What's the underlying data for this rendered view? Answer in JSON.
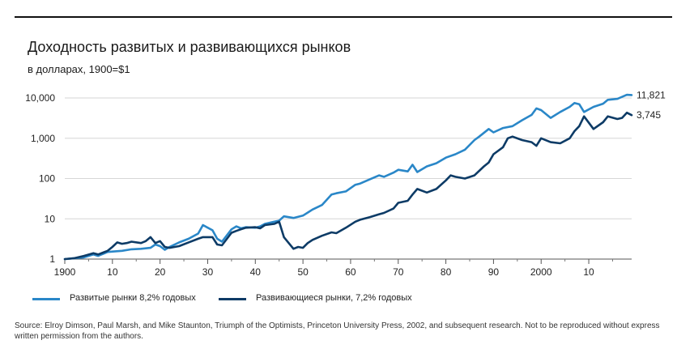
{
  "title": "Доходность развитых и развивающихся рынков",
  "subtitle": "в долларах, 1900=$1",
  "source": "Source: Elroy Dimson, Paul Marsh, and Mike Staunton, Triumph of the Optimists, Princeton University Press, 2002, and subsequent research. Not to be reproduced without express written permission from the authors.",
  "chart_data": {
    "type": "line",
    "yscale": "log",
    "xlim": [
      1900,
      2019
    ],
    "ylim": [
      1,
      10000
    ],
    "grid": "horizontal",
    "legend_position": "bottom",
    "x_ticks": [
      1900,
      1910,
      1920,
      1930,
      1940,
      1950,
      1960,
      1970,
      1980,
      1990,
      2000,
      2010
    ],
    "x_tick_labels": [
      "1900",
      "10",
      "20",
      "30",
      "40",
      "50",
      "60",
      "70",
      "80",
      "90",
      "2000",
      "10"
    ],
    "y_ticks": [
      1,
      10,
      100,
      1000,
      10000
    ],
    "y_tick_labels": [
      "1",
      "10",
      "100",
      "1,000",
      "10,000"
    ],
    "series": [
      {
        "name": "Развитые рынки 8,2% годовых",
        "color": "#2a87c8",
        "end_label": "11,821",
        "x": [
          1900,
          1902,
          1904,
          1906,
          1907,
          1909,
          1912,
          1914,
          1916,
          1918,
          1919,
          1920,
          1921,
          1922,
          1924,
          1926,
          1928,
          1929,
          1931,
          1932,
          1933,
          1935,
          1936,
          1937,
          1938,
          1940,
          1941,
          1942,
          1944,
          1945,
          1946,
          1948,
          1950,
          1952,
          1954,
          1956,
          1957,
          1959,
          1961,
          1962,
          1964,
          1966,
          1967,
          1969,
          1970,
          1972,
          1973,
          1974,
          1976,
          1978,
          1980,
          1982,
          1984,
          1986,
          1987,
          1989,
          1990,
          1992,
          1994,
          1996,
          1998,
          1999,
          2000,
          2002,
          2004,
          2006,
          2007,
          2008,
          2009,
          2011,
          2013,
          2014,
          2016,
          2018,
          2019
        ],
        "y": [
          1,
          1.05,
          1.1,
          1.3,
          1.2,
          1.5,
          1.6,
          1.75,
          1.8,
          1.9,
          2.3,
          2.1,
          1.7,
          2.0,
          2.6,
          3.2,
          4.3,
          7.0,
          5.2,
          3.2,
          2.7,
          5.5,
          6.5,
          5.8,
          6.2,
          6.0,
          6.5,
          7.5,
          8.5,
          9.0,
          11.5,
          10.5,
          12,
          17,
          22,
          40,
          43,
          48,
          70,
          75,
          95,
          120,
          110,
          140,
          165,
          150,
          220,
          145,
          200,
          240,
          330,
          400,
          520,
          900,
          1100,
          1700,
          1400,
          1800,
          2000,
          2800,
          3800,
          5500,
          5000,
          3200,
          4500,
          6000,
          7500,
          7000,
          4500,
          6000,
          7200,
          9000,
          9500,
          12000,
          11821
        ]
      },
      {
        "name": "Развивающиеся рынки, 7,2% годовых",
        "color": "#0d3b66",
        "end_label": "3,745",
        "x": [
          1900,
          1902,
          1904,
          1906,
          1907,
          1909,
          1910,
          1911,
          1912,
          1913,
          1914,
          1916,
          1917,
          1918,
          1919,
          1920,
          1921,
          1922,
          1924,
          1926,
          1928,
          1929,
          1931,
          1932,
          1933,
          1935,
          1936,
          1937,
          1938,
          1940,
          1941,
          1942,
          1944,
          1945,
          1946,
          1948,
          1949,
          1950,
          1951,
          1952,
          1954,
          1956,
          1957,
          1959,
          1961,
          1962,
          1964,
          1966,
          1967,
          1969,
          1970,
          1972,
          1973,
          1974,
          1976,
          1978,
          1980,
          1981,
          1982,
          1984,
          1986,
          1988,
          1989,
          1990,
          1992,
          1993,
          1994,
          1996,
          1998,
          1999,
          2000,
          2002,
          2004,
          2006,
          2007,
          2008,
          2009,
          2011,
          2013,
          2014,
          2016,
          2017,
          2018,
          2019
        ],
        "y": [
          1,
          1.05,
          1.2,
          1.4,
          1.3,
          1.6,
          2.0,
          2.6,
          2.4,
          2.5,
          2.7,
          2.5,
          2.8,
          3.5,
          2.5,
          2.8,
          2.0,
          1.9,
          2.1,
          2.6,
          3.2,
          3.5,
          3.5,
          2.3,
          2.2,
          4.5,
          5.0,
          5.5,
          6.0,
          6.2,
          5.8,
          7.0,
          7.5,
          8.5,
          3.5,
          1.8,
          2.0,
          1.9,
          2.5,
          3.0,
          3.8,
          4.6,
          4.4,
          6.0,
          8.5,
          9.5,
          11,
          13,
          14,
          18,
          25,
          28,
          40,
          55,
          45,
          55,
          90,
          120,
          110,
          100,
          120,
          200,
          250,
          400,
          600,
          1000,
          1100,
          900,
          800,
          650,
          1000,
          800,
          750,
          1000,
          1500,
          2000,
          3500,
          1700,
          2500,
          3500,
          3000,
          3200,
          4300,
          3745
        ]
      }
    ]
  }
}
